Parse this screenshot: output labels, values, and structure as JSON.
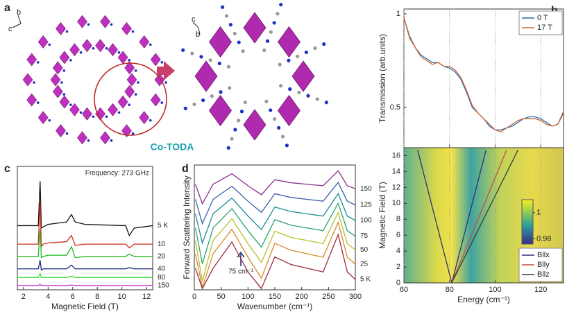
{
  "panel_labels": [
    "a",
    "b",
    "c",
    "d"
  ],
  "structure": {
    "label": "Co-TODA",
    "axes_left": [
      "b",
      "c"
    ],
    "axes_right": [
      "c",
      "b"
    ]
  },
  "chart_data": [
    {
      "type": "line",
      "ylabel": "Transmission (arb.units)",
      "xlim": [
        60,
        130
      ],
      "xticks": [
        60,
        80,
        100,
        120
      ],
      "ylim": [
        0.285,
        1.026
      ],
      "yticks": [
        0.5,
        1
      ],
      "grid": true,
      "legend": "upper right",
      "x": [
        60,
        62.5,
        65,
        67.5,
        70,
        72.5,
        75,
        77.5,
        80,
        82.5,
        85,
        87.5,
        90,
        92.5,
        95,
        97.5,
        100,
        102.5,
        105,
        107.5,
        110,
        112.5,
        115,
        117.5,
        120,
        122.5,
        125,
        127.5,
        130
      ],
      "series": [
        {
          "name": "0 T",
          "color": "#1f6fb4",
          "values": [
            0.98,
            0.88,
            0.82,
            0.78,
            0.76,
            0.74,
            0.74,
            0.72,
            0.71,
            0.69,
            0.65,
            0.58,
            0.5,
            0.47,
            0.44,
            0.4,
            0.38,
            0.38,
            0.39,
            0.4,
            0.42,
            0.44,
            0.45,
            0.45,
            0.44,
            0.42,
            0.4,
            0.41,
            0.47
          ]
        },
        {
          "name": "17 T",
          "color": "#d9622b",
          "values": [
            0.98,
            0.87,
            0.82,
            0.77,
            0.75,
            0.73,
            0.74,
            0.72,
            0.72,
            0.7,
            0.66,
            0.59,
            0.51,
            0.47,
            0.44,
            0.41,
            0.38,
            0.37,
            0.39,
            0.41,
            0.43,
            0.44,
            0.44,
            0.44,
            0.43,
            0.41,
            0.4,
            0.41,
            0.48
          ]
        }
      ]
    },
    {
      "type": "line",
      "xlabel": "Energy (cm⁻¹)",
      "ylabel": "Magnetic Field (T)",
      "xlim": [
        60,
        130
      ],
      "xticks": [
        60,
        80,
        100,
        120
      ],
      "ylim": [
        0,
        17
      ],
      "yticks": [
        0,
        2,
        4,
        6,
        8,
        10,
        12,
        14,
        16
      ],
      "grid": true,
      "legend": "lower right",
      "colorbar": {
        "clim": [
          0.976,
          1.01
        ],
        "ticks": [
          0.98,
          1
        ]
      },
      "series": [
        {
          "name": "Bllx",
          "color": "#2b2f7a",
          "x": [
            66,
            81,
            96
          ],
          "values": [
            16.7,
            0,
            16.7
          ]
        },
        {
          "name": "Blly",
          "color": "#c0504d",
          "x": [
            81,
            105
          ],
          "values": [
            0,
            16.7
          ]
        },
        {
          "name": "Bllz",
          "color": "#3a3a3a",
          "x": [
            81,
            110
          ],
          "values": [
            0,
            16.7
          ]
        }
      ]
    },
    {
      "type": "line",
      "xlabel": "Magnetic Field (T)",
      "annotation": "Frequency: 273 GHz",
      "xlim": [
        1.5,
        12.5
      ],
      "xticks": [
        2,
        4,
        6,
        8,
        10,
        12
      ],
      "ylim": [
        0,
        10
      ],
      "legend": "line-end",
      "x": [
        1.5,
        3.2,
        3.35,
        3.45,
        3.6,
        4,
        5.5,
        5.9,
        6.2,
        7,
        10.3,
        10.6,
        11,
        12.5
      ],
      "series": [
        {
          "name": "5 K",
          "color": "#111111",
          "values": [
            5.2,
            5.2,
            8.8,
            5.0,
            5.1,
            5.3,
            5.5,
            6.1,
            5.5,
            5.3,
            5.2,
            4.4,
            5.0,
            5.2
          ]
        },
        {
          "name": "10",
          "color": "#d02a20",
          "values": [
            3.7,
            3.7,
            7.1,
            3.5,
            3.7,
            3.8,
            3.9,
            4.4,
            3.6,
            3.7,
            3.7,
            3.4,
            3.7,
            3.7
          ]
        },
        {
          "name": "20",
          "color": "#22b822",
          "values": [
            2.7,
            2.7,
            4.9,
            2.6,
            2.7,
            2.8,
            2.8,
            3.5,
            2.6,
            2.7,
            2.7,
            2.9,
            2.7,
            2.7
          ]
        },
        {
          "name": "40",
          "color": "#1c2a7a",
          "values": [
            1.7,
            1.7,
            2.4,
            1.6,
            1.7,
            1.7,
            1.7,
            2.0,
            1.7,
            1.7,
            1.7,
            1.8,
            1.7,
            1.7
          ]
        },
        {
          "name": "80",
          "color": "#33dd33",
          "values": [
            1.0,
            1.0,
            1.3,
            1.0,
            1.0,
            1.0,
            1.0,
            1.1,
            1.0,
            1.0,
            1.0,
            1.0,
            1.0,
            1.0
          ]
        },
        {
          "name": "150",
          "color": "#d030d0",
          "values": [
            0.35,
            0.35,
            0.45,
            0.35,
            0.35,
            0.35,
            0.35,
            0.38,
            0.35,
            0.35,
            0.35,
            0.35,
            0.35,
            0.35
          ]
        }
      ]
    },
    {
      "type": "line",
      "xlabel": "Wavenumber (cm⁻¹)",
      "ylabel": "Forward Scattering Intensity",
      "annotation": "75 cm⁻¹",
      "xlim": [
        0,
        300
      ],
      "xticks": [
        0,
        50,
        100,
        150,
        200,
        250,
        300
      ],
      "ylim": [
        0,
        10
      ],
      "legend": "line-end",
      "x": [
        2,
        15,
        35,
        70,
        100,
        125,
        150,
        180,
        210,
        240,
        268,
        285,
        300
      ],
      "series": [
        {
          "name": "150",
          "color": "#8b2c8e",
          "values": [
            8.46,
            6.9,
            8.46,
            9.3,
            8.34,
            7.62,
            8.82,
            8.58,
            8.46,
            8.34,
            9.54,
            8.34,
            8.1
          ]
        },
        {
          "name": "125",
          "color": "#3b5ea8",
          "values": [
            7.25,
            5.3,
            7.25,
            8.3,
            7.1,
            6.2,
            7.7,
            7.4,
            7.25,
            7.1,
            8.6,
            7.1,
            6.8
          ]
        },
        {
          "name": "100",
          "color": "#1e8a9a",
          "values": [
            6.09,
            3.75,
            6.09,
            7.35,
            5.91,
            4.83,
            6.63,
            6.27,
            6.09,
            5.91,
            7.71,
            5.91,
            5.55
          ]
        },
        {
          "name": "75",
          "color": "#2aa36a",
          "values": [
            4.96,
            2.1,
            4.96,
            6.5,
            4.74,
            3.42,
            5.62,
            5.18,
            4.96,
            4.74,
            6.94,
            4.74,
            4.3
          ]
        },
        {
          "name": "50",
          "color": "#b5c22a",
          "values": [
            3.95,
            0.7,
            3.95,
            5.7,
            3.7,
            2.2,
            4.7,
            4.2,
            3.95,
            3.7,
            6.2,
            3.7,
            3.2
          ]
        },
        {
          "name": "25",
          "color": "#d98a2a",
          "values": [
            2.89,
            0.2,
            2.89,
            4.85,
            2.61,
            0.93,
            3.73,
            3.17,
            2.89,
            2.61,
            5.41,
            2.61,
            2.05
          ]
        },
        {
          "name": "5 K",
          "color": "#9c2a3a",
          "values": [
            1.73,
            0.1,
            1.73,
            3.83,
            1.43,
            0.1,
            2.63,
            2.03,
            1.73,
            1.43,
            4.43,
            1.43,
            0.83
          ]
        }
      ]
    }
  ]
}
